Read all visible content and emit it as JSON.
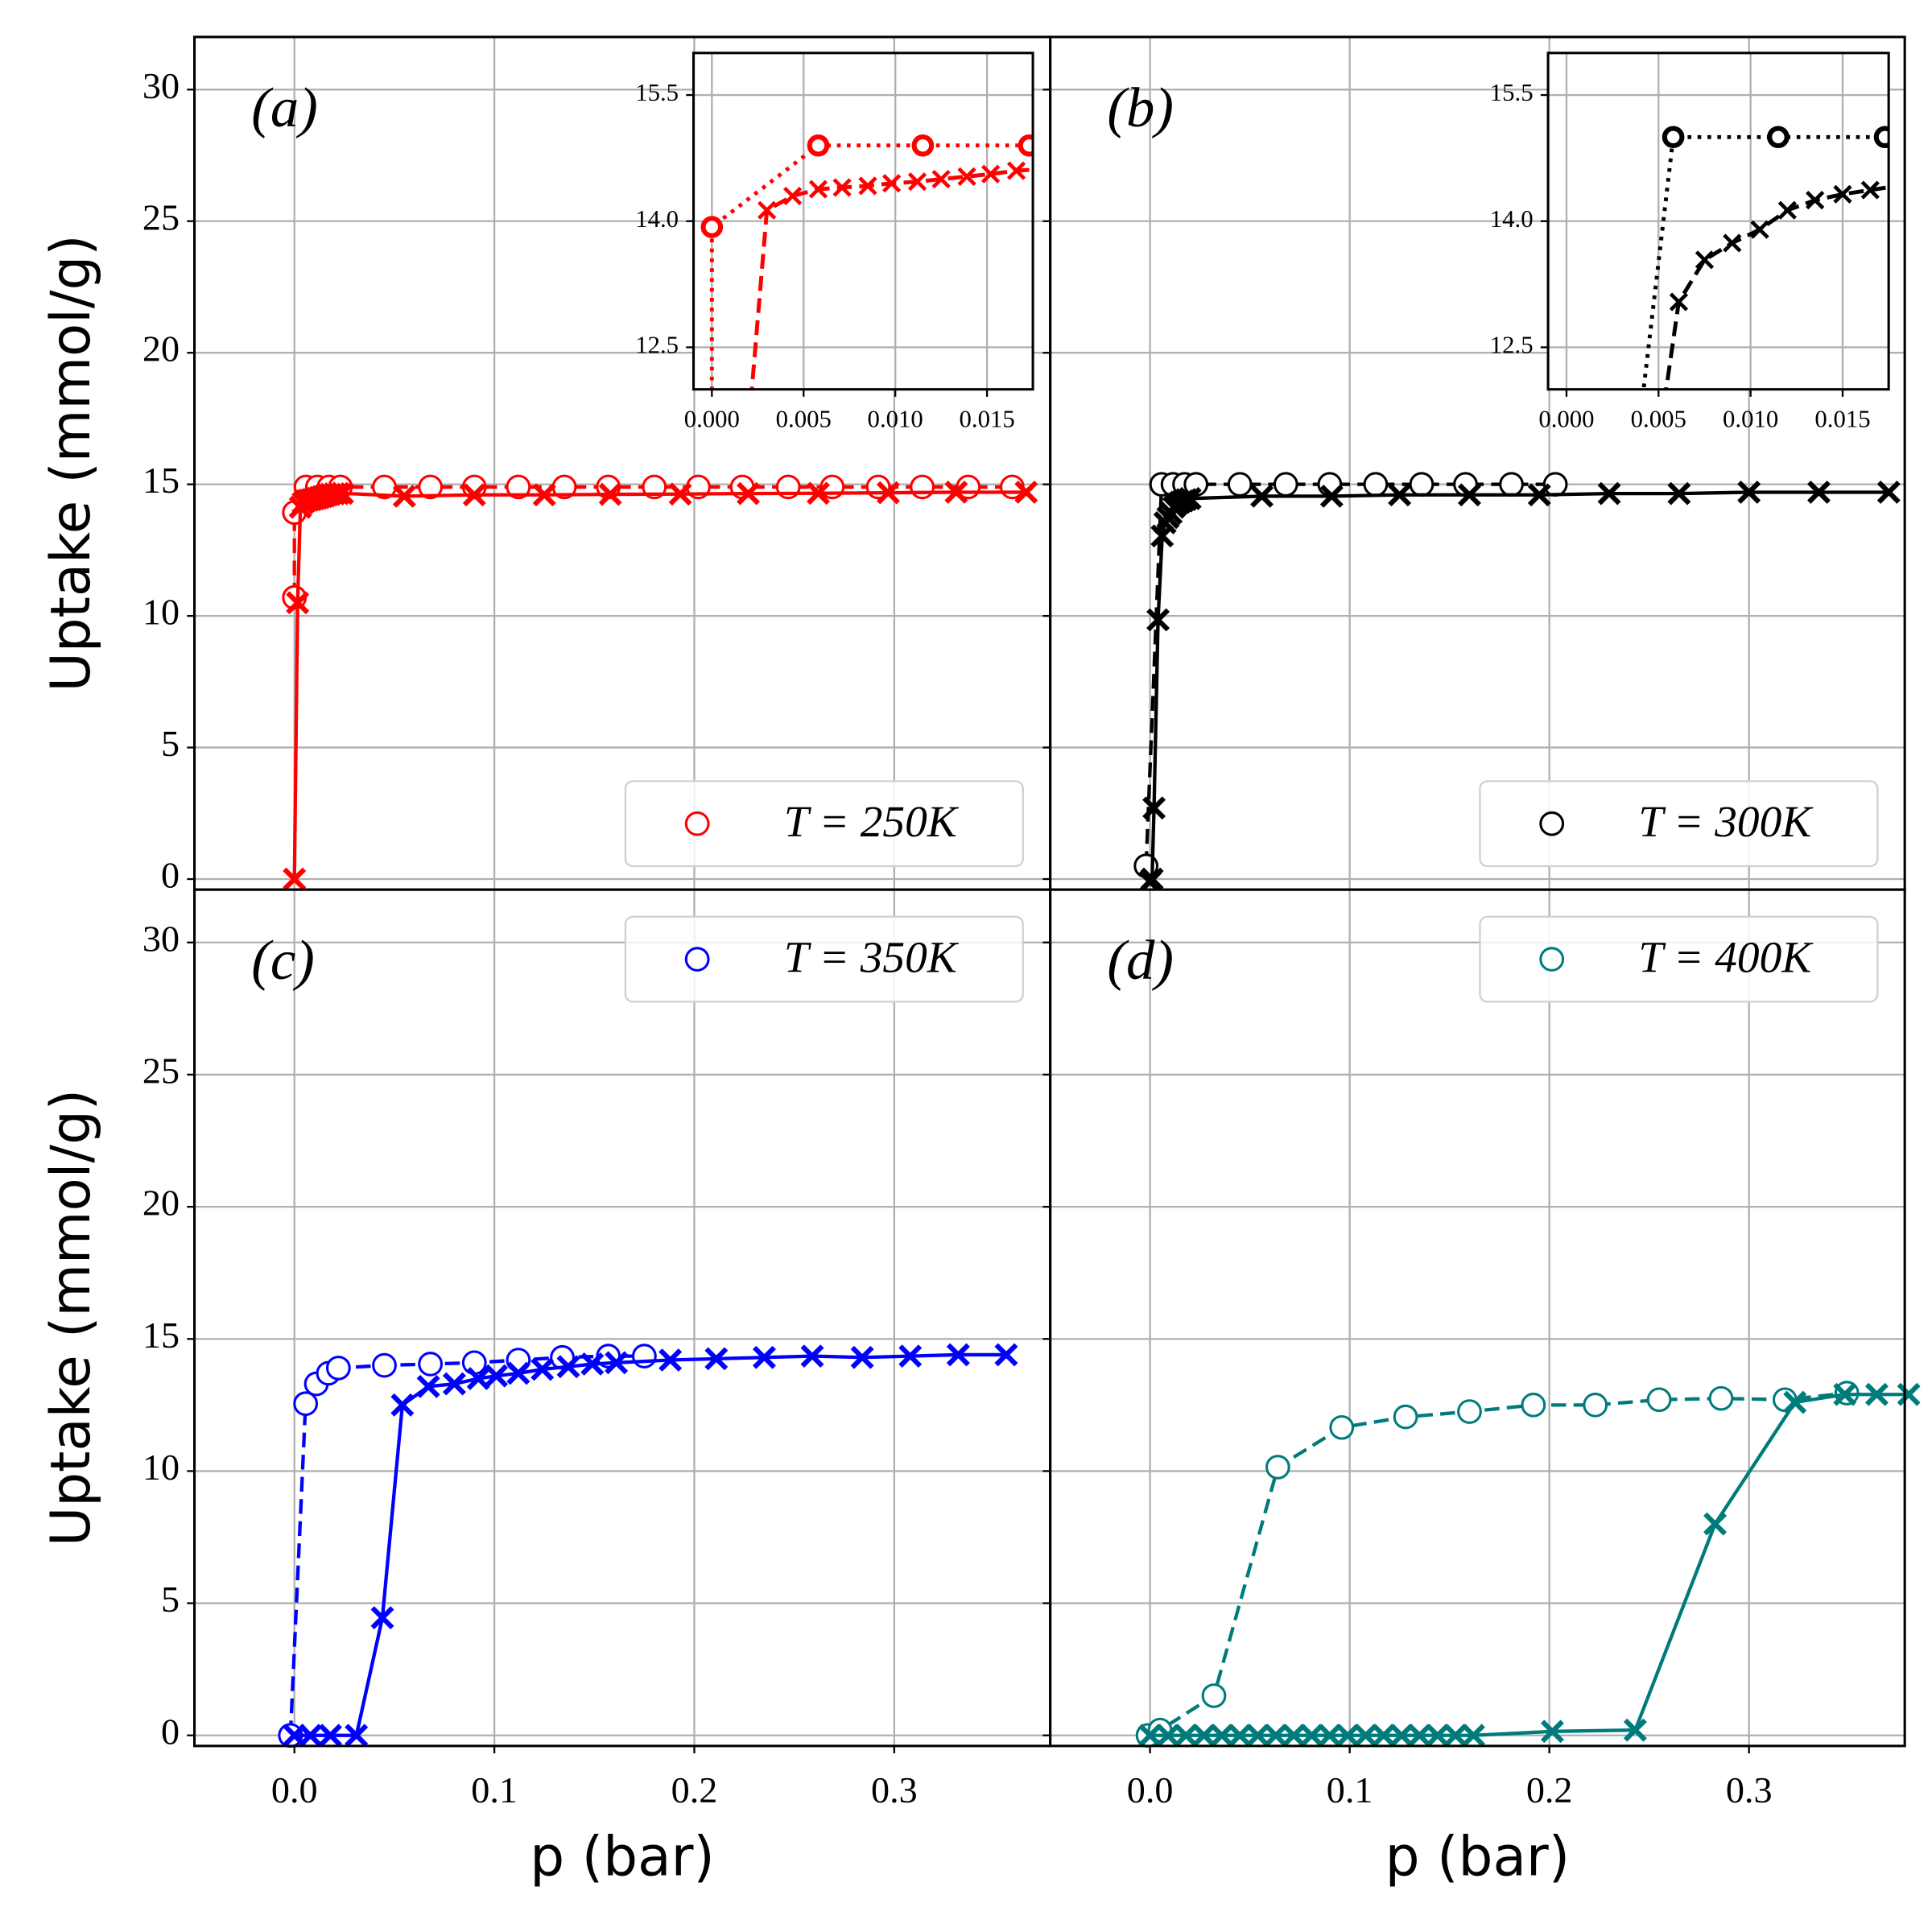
{
  "chart_data": [
    {
      "type": "line",
      "label": "(a)",
      "ylabel": "Uptake (mmol/g)",
      "xlim": [
        -0.05,
        0.378
      ],
      "ylim": [
        -0.4,
        32
      ],
      "xticks": [
        0,
        0.1,
        0.2,
        0.3
      ],
      "yticks": [
        0,
        5,
        10,
        15,
        20,
        25,
        30
      ],
      "grid": true,
      "legend": "lower right",
      "series": [
        {
          "name": "T = 250K",
          "color": "#ff0000",
          "marker": "o",
          "linestyle": "dashed",
          "x": [
            0,
            0,
            0.0058,
            0.0115,
            0.0173,
            0.023,
            0.045,
            0.068,
            0.09,
            0.112,
            0.135,
            0.157,
            0.18,
            0.202,
            0.224,
            0.247,
            0.269,
            0.292,
            0.314,
            0.337,
            0.359
          ],
          "values": [
            10.7,
            13.93,
            14.9,
            14.9,
            14.9,
            14.9,
            14.9,
            14.9,
            14.9,
            14.9,
            14.9,
            14.9,
            14.9,
            14.9,
            14.9,
            14.9,
            14.9,
            14.9,
            14.9,
            14.9,
            14.9
          ]
        },
        {
          "color": "#ff0000",
          "marker": "x",
          "linestyle": "solid",
          "x": [
            0,
            0.0016,
            0.003,
            0.0044,
            0.0058,
            0.0071,
            0.0085,
            0.0098,
            0.0112,
            0.0125,
            0.0139,
            0.0152,
            0.0166,
            0.018,
            0.02,
            0.022,
            0.024,
            0.055,
            0.09,
            0.125,
            0.158,
            0.193,
            0.227,
            0.262,
            0.297,
            0.331,
            0.366
          ],
          "values": [
            0,
            10.5,
            14.13,
            14.3,
            14.38,
            14.4,
            14.42,
            14.45,
            14.47,
            14.5,
            14.53,
            14.56,
            14.6,
            14.62,
            14.64,
            14.65,
            14.66,
            14.55,
            14.6,
            14.6,
            14.62,
            14.63,
            14.65,
            14.66,
            14.68,
            14.7,
            14.7
          ]
        }
      ],
      "inset": {
        "xlim": [
          -0.001,
          0.0175
        ],
        "ylim": [
          12.0,
          16.0
        ],
        "xticks": [
          {
            "value": 0,
            "label": "0.000"
          },
          0.005,
          {
            "value": 0.01,
            "label": "0.010"
          },
          0.015
        ],
        "yticks": [
          12.5,
          {
            "value": 14,
            "label": "14.0"
          },
          15.5
        ],
        "linestyles": [
          "dotted",
          "dashed"
        ]
      }
    },
    {
      "type": "line",
      "label": "(b)",
      "xlim": [
        -0.05,
        0.378
      ],
      "ylim": [
        -0.4,
        32
      ],
      "xticks": [
        0,
        0.1,
        0.2,
        0.3
      ],
      "yticks": [
        0,
        5,
        10,
        15,
        20,
        25,
        30
      ],
      "grid": true,
      "legend": "lower right",
      "series": [
        {
          "name": "T = 300K",
          "color": "#000000",
          "marker": "o",
          "linestyle": "dashed",
          "x": [
            -0.002,
            0.0058,
            0.0115,
            0.0173,
            0.023,
            0.045,
            0.068,
            0.09,
            0.113,
            0.136,
            0.158,
            0.181,
            0.203
          ],
          "values": [
            0.5,
            15.0,
            15.0,
            15.0,
            15.0,
            15.0,
            15.0,
            15.0,
            15.0,
            15.0,
            15.0,
            15.0,
            15.0
          ]
        },
        {
          "color": "#000000",
          "marker": "x",
          "linestyle": "solid",
          "x": [
            0,
            0.001,
            0.002,
            0.004,
            0.0061,
            0.0075,
            0.009,
            0.0105,
            0.012,
            0.0135,
            0.015,
            0.0165,
            0.018,
            0.02,
            0.056,
            0.091,
            0.125,
            0.16,
            0.195,
            0.23,
            0.265,
            0.3,
            0.335,
            0.37
          ],
          "values": [
            -0.1,
            0,
            2.7,
            9.85,
            13.04,
            13.54,
            13.74,
            13.9,
            14.13,
            14.25,
            14.32,
            14.37,
            14.42,
            14.46,
            14.55,
            14.55,
            14.6,
            14.6,
            14.6,
            14.65,
            14.65,
            14.7,
            14.7,
            14.7
          ]
        }
      ],
      "inset": {
        "xlim": [
          -0.001,
          0.0175
        ],
        "ylim": [
          12.0,
          16.0
        ],
        "xticks": [
          {
            "value": 0,
            "label": "0.000"
          },
          0.005,
          {
            "value": 0.01,
            "label": "0.010"
          },
          0.015
        ],
        "yticks": [
          12.5,
          {
            "value": 14,
            "label": "14.0"
          },
          15.5
        ],
        "linestyles": [
          "dotted",
          "dashed"
        ]
      }
    },
    {
      "type": "line",
      "label": "(c)",
      "ylabel": "Uptake (mmol/g)",
      "xlabel": "p (bar)",
      "xlim": [
        -0.05,
        0.378
      ],
      "ylim": [
        -0.4,
        32
      ],
      "xticks": [
        {
          "value": 0,
          "label": "0.0"
        },
        0.1,
        0.2,
        0.3
      ],
      "yticks": [
        0,
        5,
        10,
        15,
        20,
        25,
        30
      ],
      "grid": true,
      "legend": "upper right",
      "series": [
        {
          "name": "T = 350K",
          "color": "#0000ff",
          "marker": "o",
          "linestyle": "dashed",
          "x": [
            -0.002,
            0.0056,
            0.011,
            0.017,
            0.022,
            0.045,
            0.068,
            0.09,
            0.112,
            0.134,
            0.157,
            0.175
          ],
          "values": [
            0,
            12.55,
            13.3,
            13.7,
            13.9,
            14.0,
            14.05,
            14.1,
            14.2,
            14.3,
            14.35,
            14.35
          ]
        },
        {
          "color": "#0000ff",
          "marker": "x",
          "linestyle": "solid",
          "x": [
            0,
            0.008,
            0.018,
            0.031,
            0.044,
            0.054,
            0.067,
            0.08,
            0.092,
            0.101,
            0.112,
            0.124,
            0.137,
            0.149,
            0.161,
            0.188,
            0.211,
            0.235,
            0.259,
            0.284,
            0.308,
            0.332,
            0.356
          ],
          "values": [
            0,
            0,
            0,
            0,
            4.45,
            12.5,
            13.2,
            13.3,
            13.5,
            13.6,
            13.7,
            13.85,
            13.95,
            14.05,
            14.1,
            14.2,
            14.25,
            14.3,
            14.35,
            14.3,
            14.35,
            14.4,
            14.4
          ]
        }
      ]
    },
    {
      "type": "line",
      "label": "(d)",
      "xlabel": "p (bar)",
      "xlim": [
        -0.05,
        0.378
      ],
      "ylim": [
        -0.4,
        32
      ],
      "xticks": [
        {
          "value": 0,
          "label": "0.0"
        },
        0.1,
        0.2,
        0.3
      ],
      "yticks": [
        0,
        5,
        10,
        15,
        20,
        25,
        30
      ],
      "grid": true,
      "legend": "upper right",
      "series": [
        {
          "name": "T = 400K",
          "color": "#007b7b",
          "marker": "o",
          "linestyle": "dashed",
          "x": [
            -0.001,
            0.005,
            0.032,
            0.064,
            0.096,
            0.128,
            0.16,
            0.192,
            0.223,
            0.255,
            0.286,
            0.318,
            0.349
          ],
          "values": [
            0,
            0.2,
            1.5,
            10.15,
            11.65,
            12.05,
            12.25,
            12.5,
            12.5,
            12.7,
            12.75,
            12.7,
            12.95
          ]
        },
        {
          "color": "#007b7b",
          "marker": "x",
          "linestyle": "solid",
          "x": [
            0,
            0.009,
            0.018,
            0.027,
            0.036,
            0.045,
            0.054,
            0.063,
            0.072,
            0.081,
            0.09,
            0.099,
            0.108,
            0.117,
            0.126,
            0.135,
            0.144,
            0.153,
            0.162,
            0.2015,
            0.243,
            0.283,
            0.323,
            0.348,
            0.364,
            0.38
          ],
          "values": [
            0,
            0,
            0,
            0,
            0,
            0,
            0,
            0,
            0,
            0,
            0,
            0,
            0,
            0,
            0,
            0,
            0,
            0,
            0,
            0.15,
            0.2,
            8.0,
            12.6,
            12.9,
            12.9,
            12.9
          ]
        }
      ]
    }
  ]
}
